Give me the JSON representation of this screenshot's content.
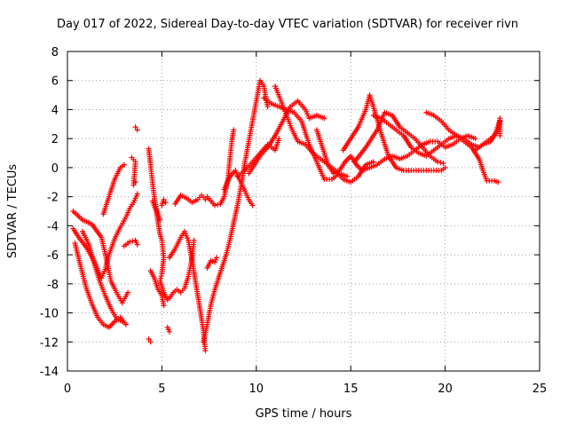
{
  "chart_data": {
    "type": "scatter",
    "title": "Day 017 of 2022, Sidereal Day-to-day VTEC variation (SDTVAR) for receiver rivn",
    "xlabel": "GPS time / hours",
    "ylabel": "SDTVAR / TECUs",
    "xlim": [
      0,
      25
    ],
    "ylim": [
      -14,
      8
    ],
    "xticks": [
      0,
      5,
      10,
      15,
      20,
      25
    ],
    "yticks": [
      -14,
      -12,
      -10,
      -8,
      -6,
      -4,
      -2,
      0,
      2,
      4,
      6,
      8
    ],
    "xtick_labels": [
      "0",
      "5",
      "10",
      "15",
      "20",
      "25"
    ],
    "ytick_labels": [
      "-14",
      "-12",
      "-10",
      "-8",
      "-6",
      "-4",
      "-2",
      "0",
      "2",
      "4",
      "6",
      "8"
    ],
    "grid": true,
    "marker": "+",
    "color": "#ff0000",
    "series": [
      {
        "points": [
          [
            0.3,
            -4.2
          ],
          [
            0.6,
            -4.8
          ],
          [
            1.0,
            -5.5
          ],
          [
            1.4,
            -6.4
          ],
          [
            1.8,
            -7.6
          ],
          [
            2.0,
            -7.0
          ],
          [
            2.2,
            -6.0
          ],
          [
            2.5,
            -4.9
          ],
          [
            2.8,
            -4.1
          ],
          [
            3.1,
            -3.4
          ],
          [
            3.3,
            -2.8
          ],
          [
            3.5,
            -2.4
          ],
          [
            3.7,
            -1.8
          ]
        ]
      },
      {
        "points": [
          [
            0.3,
            -3.0
          ],
          [
            0.8,
            -3.6
          ],
          [
            1.3,
            -3.9
          ],
          [
            1.8,
            -4.8
          ],
          [
            2.1,
            -6.5
          ],
          [
            2.3,
            -7.8
          ],
          [
            2.6,
            -8.6
          ],
          [
            2.9,
            -9.3
          ],
          [
            3.2,
            -8.6
          ]
        ]
      },
      {
        "points": [
          [
            0.4,
            -5.2
          ],
          [
            0.7,
            -6.8
          ],
          [
            1.0,
            -8.3
          ],
          [
            1.3,
            -9.4
          ],
          [
            1.6,
            -10.3
          ],
          [
            1.9,
            -10.8
          ],
          [
            2.2,
            -11.0
          ],
          [
            2.5,
            -10.6
          ],
          [
            2.8,
            -10.3
          ],
          [
            3.1,
            -10.8
          ]
        ]
      },
      {
        "points": [
          [
            0.8,
            -4.4
          ],
          [
            1.1,
            -5.2
          ],
          [
            1.4,
            -6.5
          ],
          [
            1.7,
            -7.8
          ],
          [
            2.0,
            -8.8
          ],
          [
            2.3,
            -9.7
          ],
          [
            2.6,
            -10.4
          ],
          [
            2.9,
            -10.6
          ]
        ]
      },
      {
        "points": [
          [
            1.9,
            -3.2
          ],
          [
            2.2,
            -2.0
          ],
          [
            2.5,
            -0.8
          ],
          [
            2.8,
            0.0
          ],
          [
            3.0,
            0.2
          ]
        ]
      },
      {
        "points": [
          [
            3.0,
            -5.4
          ],
          [
            3.3,
            -5.1
          ],
          [
            3.6,
            -5.0
          ],
          [
            3.7,
            -5.3
          ]
        ]
      },
      {
        "points": [
          [
            3.4,
            0.7
          ],
          [
            3.6,
            0.4
          ],
          [
            3.5,
            -1.2
          ],
          [
            3.6,
            -1.0
          ]
        ]
      },
      {
        "points": [
          [
            3.6,
            2.8
          ],
          [
            3.7,
            2.6
          ]
        ]
      },
      {
        "points": [
          [
            4.3,
            1.3
          ],
          [
            4.4,
            0.2
          ],
          [
            4.5,
            -1.0
          ],
          [
            4.6,
            -2.0
          ],
          [
            4.7,
            -2.8
          ],
          [
            4.8,
            -3.2
          ],
          [
            4.9,
            -3.6
          ]
        ]
      },
      {
        "points": [
          [
            4.5,
            -2.3
          ],
          [
            4.7,
            -3.0
          ],
          [
            4.9,
            -4.6
          ],
          [
            5.0,
            -5.0
          ],
          [
            5.1,
            -6.2
          ],
          [
            5.0,
            -7.3
          ],
          [
            4.9,
            -7.8
          ],
          [
            5.1,
            -8.6
          ],
          [
            5.3,
            -9.1
          ]
        ]
      },
      {
        "points": [
          [
            4.4,
            -7.1
          ],
          [
            4.6,
            -7.6
          ],
          [
            4.8,
            -8.4
          ],
          [
            5.0,
            -8.8
          ],
          [
            5.1,
            -9.5
          ]
        ]
      },
      {
        "points": [
          [
            4.3,
            -11.8
          ],
          [
            4.4,
            -12.0
          ]
        ]
      },
      {
        "points": [
          [
            5.0,
            -2.6
          ],
          [
            5.1,
            -2.2
          ],
          [
            5.2,
            -2.4
          ]
        ]
      },
      {
        "points": [
          [
            5.3,
            -11.0
          ],
          [
            5.4,
            -11.3
          ]
        ]
      },
      {
        "points": [
          [
            5.4,
            -9.0
          ],
          [
            5.6,
            -8.6
          ],
          [
            5.8,
            -8.4
          ],
          [
            6.0,
            -8.6
          ],
          [
            6.2,
            -8.3
          ],
          [
            6.4,
            -7.5
          ],
          [
            6.6,
            -6.2
          ],
          [
            6.7,
            -5.0
          ]
        ]
      },
      {
        "points": [
          [
            5.7,
            -2.5
          ],
          [
            6.0,
            -1.9
          ],
          [
            6.3,
            -2.1
          ],
          [
            6.6,
            -2.4
          ],
          [
            6.9,
            -2.2
          ],
          [
            7.1,
            -1.9
          ],
          [
            7.3,
            -2.2
          ]
        ]
      },
      {
        "points": [
          [
            5.4,
            -6.2
          ],
          [
            5.7,
            -5.6
          ],
          [
            6.0,
            -4.8
          ],
          [
            6.2,
            -4.4
          ],
          [
            6.4,
            -5.0
          ],
          [
            6.6,
            -6.4
          ],
          [
            6.8,
            -8.0
          ],
          [
            7.0,
            -9.6
          ],
          [
            7.2,
            -11.2
          ],
          [
            7.3,
            -12.6
          ]
        ]
      },
      {
        "points": [
          [
            7.2,
            -12.0
          ],
          [
            7.4,
            -10.8
          ],
          [
            7.6,
            -9.4
          ],
          [
            7.8,
            -8.4
          ],
          [
            8.0,
            -7.6
          ],
          [
            8.2,
            -6.8
          ],
          [
            8.4,
            -6.0
          ],
          [
            8.6,
            -5.0
          ],
          [
            8.8,
            -3.8
          ],
          [
            9.0,
            -2.6
          ],
          [
            9.2,
            -1.2
          ],
          [
            9.4,
            0.4
          ],
          [
            9.6,
            1.8
          ],
          [
            9.8,
            3.2
          ],
          [
            10.0,
            4.6
          ],
          [
            10.2,
            6.0
          ],
          [
            10.4,
            5.6
          ],
          [
            10.6,
            4.2
          ]
        ]
      },
      {
        "points": [
          [
            7.4,
            -6.9
          ],
          [
            7.6,
            -6.4
          ],
          [
            7.8,
            -6.5
          ],
          [
            7.9,
            -6.2
          ]
        ]
      },
      {
        "points": [
          [
            7.4,
            -2.0
          ],
          [
            7.8,
            -2.6
          ],
          [
            8.1,
            -2.5
          ],
          [
            8.3,
            -2.0
          ],
          [
            8.5,
            -0.8
          ],
          [
            8.6,
            0.6
          ],
          [
            8.7,
            1.8
          ],
          [
            8.8,
            2.6
          ]
        ]
      },
      {
        "points": [
          [
            8.3,
            -1.5
          ],
          [
            8.6,
            -0.6
          ],
          [
            8.9,
            -0.2
          ],
          [
            9.1,
            -0.8
          ],
          [
            9.4,
            -1.6
          ],
          [
            9.6,
            -2.2
          ],
          [
            9.8,
            -2.6
          ]
        ]
      },
      {
        "points": [
          [
            9.0,
            -0.6
          ],
          [
            9.4,
            -0.2
          ],
          [
            9.8,
            0.4
          ],
          [
            10.2,
            1.0
          ],
          [
            10.6,
            1.6
          ],
          [
            11.0,
            1.2
          ],
          [
            11.2,
            2.0
          ]
        ]
      },
      {
        "points": [
          [
            9.6,
            -0.4
          ],
          [
            9.9,
            0.2
          ],
          [
            10.2,
            0.8
          ],
          [
            10.6,
            1.4
          ],
          [
            11.0,
            2.2
          ],
          [
            11.4,
            3.2
          ],
          [
            11.8,
            4.2
          ],
          [
            12.2,
            4.6
          ],
          [
            12.6,
            4.0
          ],
          [
            12.8,
            3.4
          ],
          [
            13.2,
            3.6
          ],
          [
            13.6,
            3.4
          ]
        ]
      },
      {
        "points": [
          [
            10.4,
            4.8
          ],
          [
            10.8,
            4.4
          ],
          [
            11.2,
            4.2
          ],
          [
            11.6,
            4.0
          ],
          [
            12.0,
            3.8
          ],
          [
            12.4,
            3.2
          ],
          [
            12.8,
            1.6
          ],
          [
            13.2,
            0.4
          ],
          [
            13.6,
            -0.8
          ],
          [
            14.0,
            -0.8
          ],
          [
            14.4,
            -0.4
          ],
          [
            14.8,
            -0.6
          ]
        ]
      },
      {
        "points": [
          [
            11.0,
            5.6
          ],
          [
            11.3,
            4.6
          ],
          [
            11.6,
            3.6
          ],
          [
            11.9,
            2.6
          ],
          [
            12.2,
            1.8
          ],
          [
            12.6,
            1.6
          ],
          [
            13.0,
            1.0
          ],
          [
            13.4,
            0.6
          ],
          [
            13.8,
            0.2
          ],
          [
            14.2,
            -0.2
          ],
          [
            14.6,
            -0.8
          ],
          [
            15.0,
            -1.0
          ],
          [
            15.4,
            -0.6
          ],
          [
            15.8,
            0.2
          ],
          [
            16.2,
            0.4
          ]
        ]
      },
      {
        "points": [
          [
            13.2,
            2.6
          ],
          [
            13.5,
            1.4
          ],
          [
            13.8,
            0.2
          ],
          [
            14.1,
            -0.4
          ],
          [
            14.4,
            -0.2
          ],
          [
            14.7,
            0.4
          ],
          [
            15.0,
            0.8
          ],
          [
            15.3,
            0.2
          ],
          [
            15.6,
            -0.2
          ],
          [
            16.0,
            0.0
          ],
          [
            16.4,
            0.2
          ],
          [
            16.8,
            0.6
          ],
          [
            17.2,
            0.8
          ],
          [
            17.6,
            0.6
          ],
          [
            18.0,
            0.8
          ],
          [
            18.4,
            1.2
          ],
          [
            18.8,
            1.6
          ],
          [
            19.2,
            1.8
          ],
          [
            19.6,
            1.8
          ],
          [
            20.0,
            1.4
          ],
          [
            20.4,
            1.6
          ],
          [
            20.8,
            2.0
          ],
          [
            21.2,
            2.2
          ],
          [
            21.6,
            2.0
          ]
        ]
      },
      {
        "points": [
          [
            14.6,
            1.2
          ],
          [
            15.0,
            2.0
          ],
          [
            15.4,
            2.8
          ],
          [
            15.8,
            4.0
          ],
          [
            16.0,
            5.0
          ],
          [
            16.2,
            4.2
          ],
          [
            16.6,
            2.4
          ],
          [
            17.0,
            0.8
          ],
          [
            17.4,
            0.0
          ],
          [
            17.8,
            -0.2
          ],
          [
            18.2,
            -0.2
          ],
          [
            18.6,
            -0.2
          ],
          [
            19.0,
            -0.2
          ],
          [
            19.4,
            -0.2
          ],
          [
            19.8,
            -0.2
          ],
          [
            20.0,
            0.0
          ]
        ]
      },
      {
        "points": [
          [
            16.2,
            3.6
          ],
          [
            16.6,
            3.4
          ],
          [
            17.0,
            3.0
          ],
          [
            17.4,
            2.6
          ],
          [
            17.8,
            2.2
          ],
          [
            18.2,
            1.4
          ],
          [
            18.6,
            1.0
          ],
          [
            19.0,
            0.8
          ],
          [
            19.4,
            1.2
          ],
          [
            19.8,
            1.6
          ],
          [
            20.2,
            2.0
          ],
          [
            20.6,
            2.2
          ],
          [
            21.0,
            2.0
          ],
          [
            21.4,
            1.6
          ],
          [
            21.8,
            1.4
          ],
          [
            22.2,
            1.8
          ],
          [
            22.6,
            2.2
          ],
          [
            22.9,
            3.2
          ]
        ]
      },
      {
        "points": [
          [
            15.2,
            0.4
          ],
          [
            15.8,
            1.4
          ],
          [
            16.4,
            2.6
          ],
          [
            16.8,
            3.8
          ],
          [
            17.2,
            3.6
          ],
          [
            17.6,
            2.8
          ],
          [
            18.0,
            2.4
          ],
          [
            18.4,
            2.0
          ],
          [
            18.8,
            1.4
          ],
          [
            19.2,
            0.8
          ],
          [
            19.6,
            0.4
          ],
          [
            19.9,
            0.3
          ]
        ]
      },
      {
        "points": [
          [
            19.0,
            3.8
          ],
          [
            19.4,
            3.6
          ],
          [
            19.8,
            3.2
          ],
          [
            20.2,
            2.6
          ],
          [
            20.6,
            2.2
          ],
          [
            21.0,
            1.8
          ],
          [
            21.4,
            1.4
          ],
          [
            21.8,
            0.6
          ],
          [
            22.0,
            -0.2
          ],
          [
            22.2,
            -0.9
          ],
          [
            22.6,
            -0.9
          ],
          [
            22.8,
            -1.0
          ]
        ]
      },
      {
        "points": [
          [
            21.6,
            1.2
          ],
          [
            22.0,
            1.6
          ],
          [
            22.4,
            1.8
          ],
          [
            22.8,
            2.6
          ],
          [
            22.9,
            3.4
          ],
          [
            22.9,
            2.2
          ]
        ]
      }
    ]
  }
}
